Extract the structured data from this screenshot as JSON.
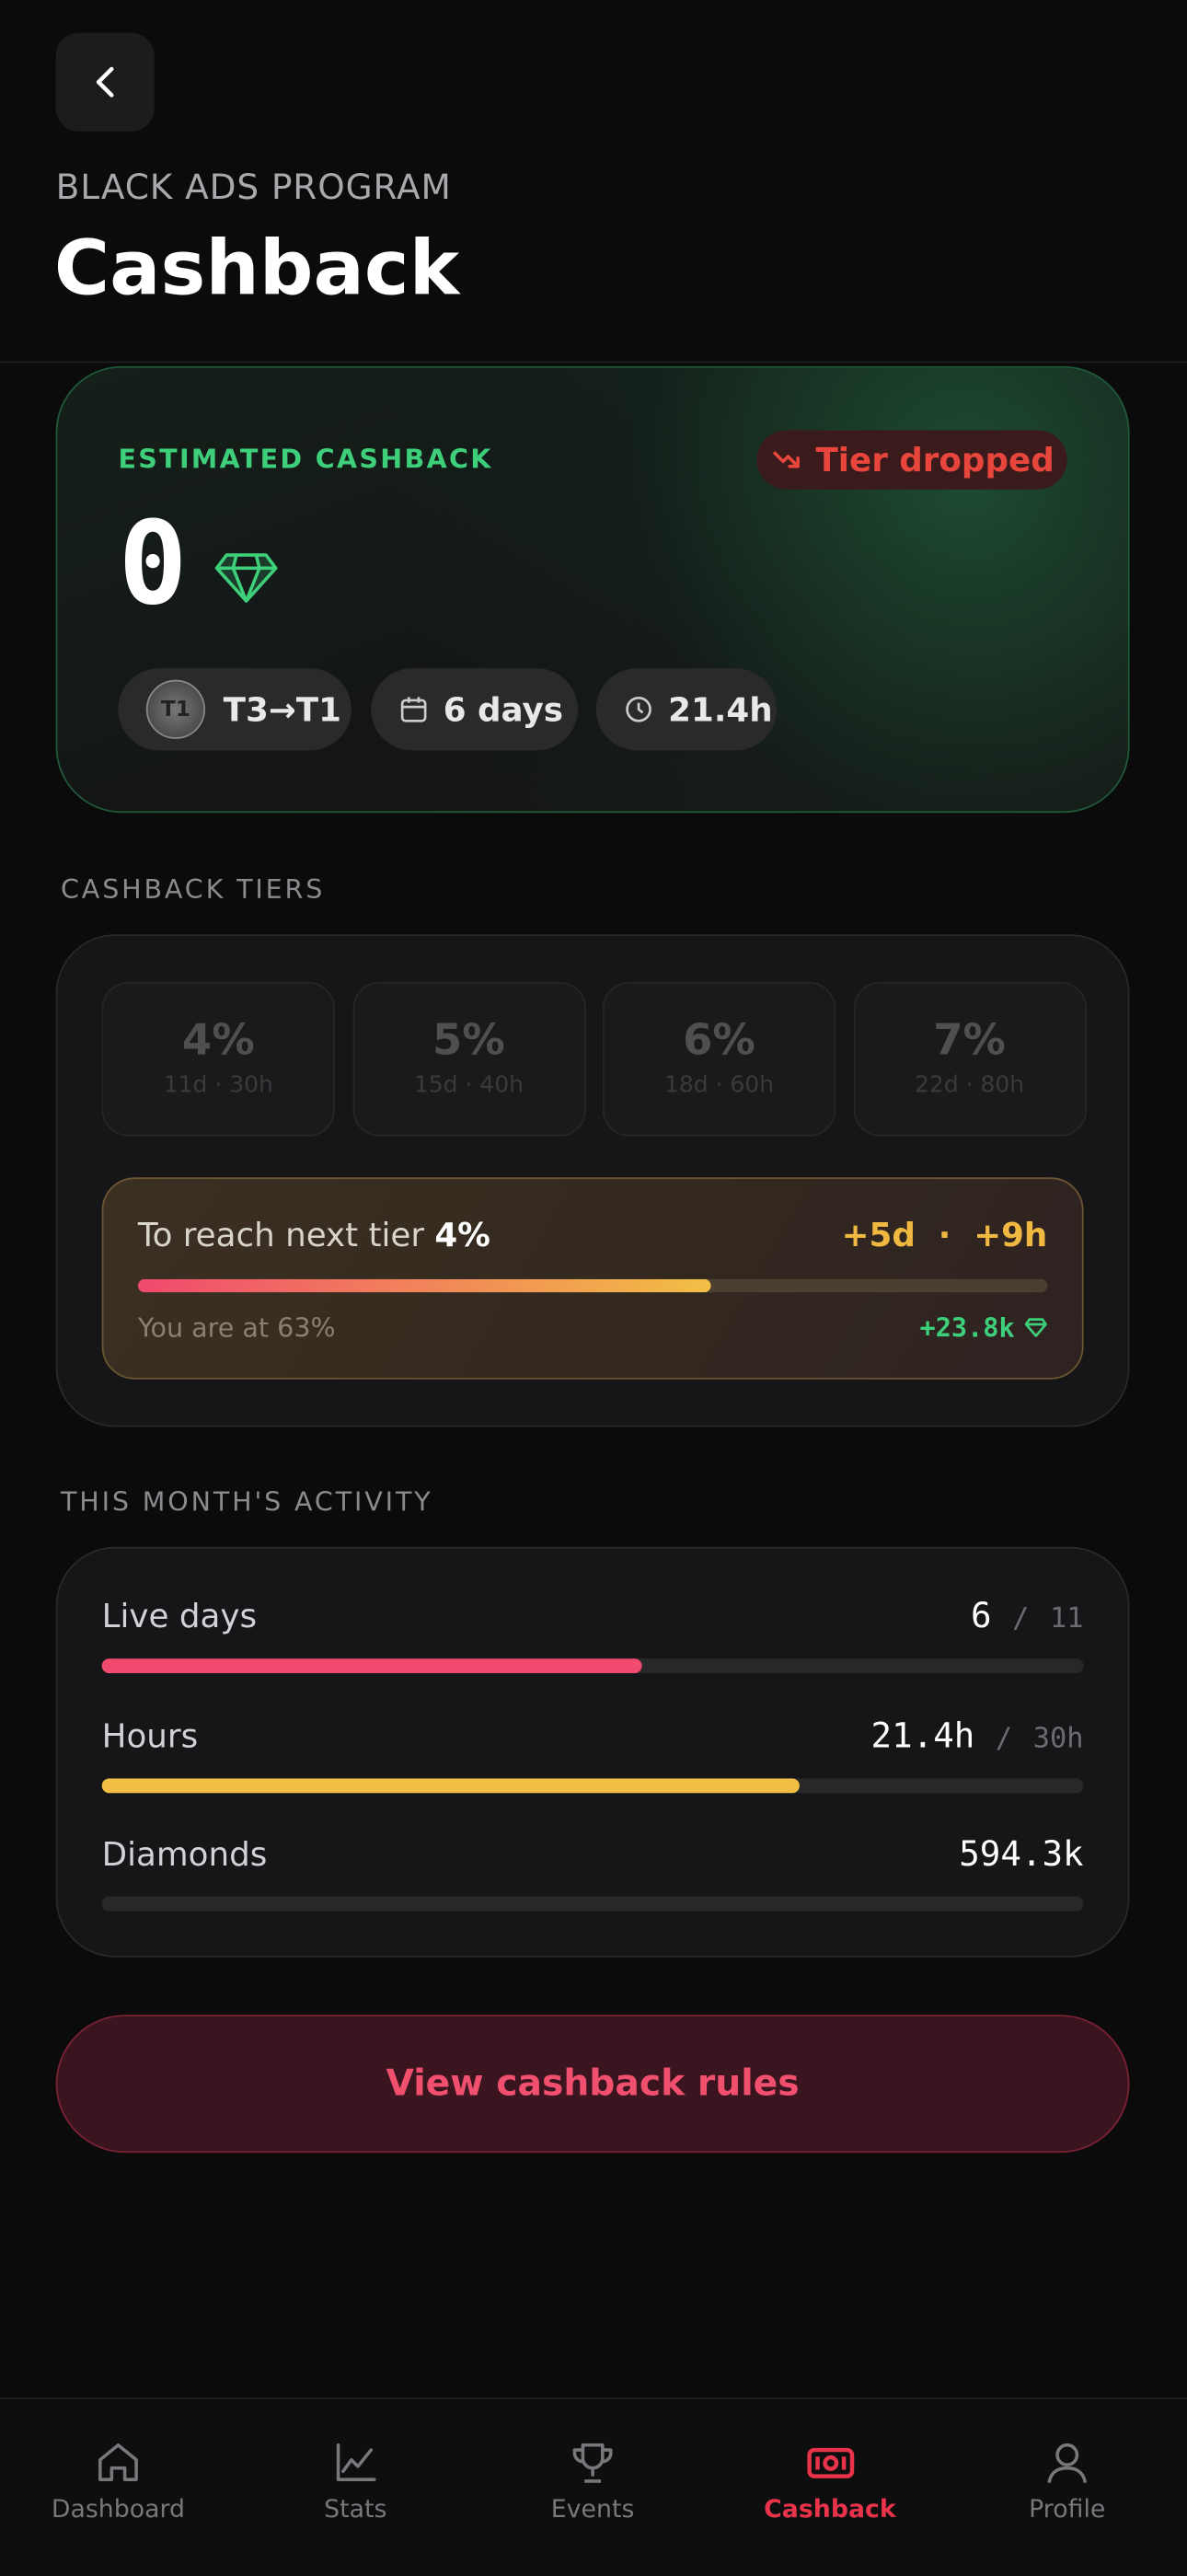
{
  "header": {
    "subtitle": "BLACK ADS PROGRAM",
    "title": "Cashback"
  },
  "summary": {
    "label": "ESTIMATED CASHBACK",
    "status": "Tier dropped",
    "amount": "0",
    "chips": [
      {
        "avatar": "T1",
        "text": "T3→T1"
      },
      {
        "text": "6 days"
      },
      {
        "text": "21.4h"
      }
    ]
  },
  "tiers": {
    "heading": "CASHBACK TIERS",
    "items": [
      {
        "rate": "4%",
        "requirement": "11d · 30h"
      },
      {
        "rate": "5%",
        "requirement": "15d · 40h"
      },
      {
        "rate": "6%",
        "requirement": "18d · 60h"
      },
      {
        "rate": "7%",
        "requirement": "22d · 80h"
      }
    ],
    "next_tier": {
      "label": "To reach next tier",
      "tier": "4%",
      "remaining_days": "+5d",
      "separator": "·",
      "remaining_hours": "+9h",
      "progress_label": "You are at 63%",
      "progress": 63,
      "diamonds": "+23.8k"
    }
  },
  "activity": {
    "heading": "THIS MONTH'S ACTIVITY",
    "separator": "/",
    "rows": [
      {
        "label": "Live days",
        "value": "6",
        "target": "11",
        "progress": 55
      },
      {
        "label": "Hours",
        "value": "21.4h",
        "target": "30h",
        "progress": 71
      },
      {
        "label": "Diamonds",
        "value": "594.3k",
        "progress": 0
      }
    ]
  },
  "button": "View cashback rules",
  "nav": {
    "active": 3,
    "items": [
      "Dashboard",
      "Stats",
      "Events",
      "Cashback",
      "Profile"
    ]
  }
}
